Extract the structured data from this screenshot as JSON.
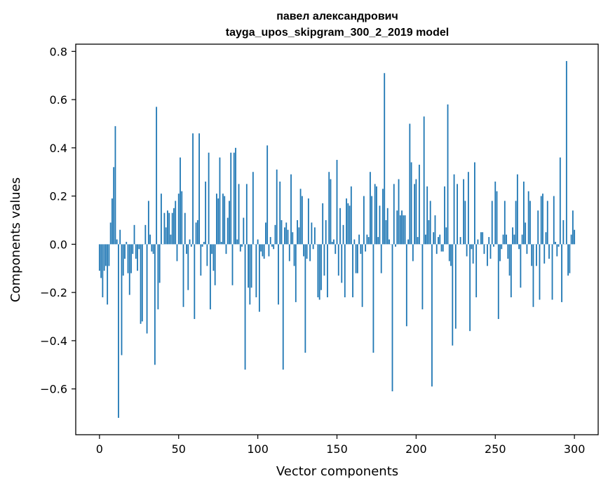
{
  "chart_data": {
    "type": "bar",
    "title_line1": "павел александрович",
    "title_line2": "tayga_upos_skipgram_300_2_2019 model",
    "xlabel": "Vector components",
    "ylabel": "Components values",
    "xlim": [
      -15,
      315
    ],
    "ylim": [
      -0.79,
      0.83
    ],
    "x_ticks": [
      0,
      50,
      100,
      150,
      200,
      250,
      300
    ],
    "y_ticks": [
      -0.6,
      -0.4,
      -0.2,
      0.0,
      0.2,
      0.4,
      0.6,
      0.8
    ],
    "x_tick_labels": [
      "0",
      "50",
      "100",
      "150",
      "200",
      "250",
      "300"
    ],
    "y_tick_labels": [
      "−0.6",
      "−0.4",
      "−0.2",
      "0.0",
      "0.2",
      "0.4",
      "0.6",
      "0.8"
    ],
    "bar_color": "#1f77b4",
    "grid": false,
    "values": [
      -0.11,
      -0.14,
      -0.22,
      -0.11,
      -0.09,
      -0.25,
      -0.09,
      0.09,
      0.19,
      0.32,
      0.49,
      0.02,
      -0.72,
      0.06,
      -0.46,
      -0.13,
      -0.06,
      0.01,
      -0.12,
      -0.21,
      -0.12,
      -0.04,
      0.08,
      -0.06,
      -0.11,
      -0.02,
      -0.33,
      -0.32,
      0.0,
      0.08,
      -0.37,
      0.18,
      0.04,
      -0.03,
      -0.04,
      -0.5,
      0.57,
      -0.27,
      -0.16,
      0.21,
      0.0,
      0.13,
      0.07,
      0.14,
      0.13,
      0.04,
      0.13,
      0.15,
      0.18,
      -0.07,
      0.21,
      0.36,
      0.22,
      -0.26,
      0.13,
      -0.04,
      -0.19,
      0.02,
      -0.01,
      0.46,
      -0.31,
      0.09,
      0.1,
      0.46,
      -0.13,
      -0.01,
      0.01,
      0.26,
      -0.09,
      0.38,
      -0.27,
      -0.04,
      -0.11,
      -0.17,
      0.21,
      0.19,
      0.36,
      0.01,
      0.21,
      0.2,
      -0.04,
      0.11,
      0.18,
      0.38,
      -0.17,
      0.38,
      0.4,
      0.02,
      0.25,
      -0.03,
      -0.01,
      0.11,
      -0.52,
      0.25,
      -0.18,
      -0.25,
      -0.18,
      0.3,
      0.0,
      -0.22,
      0.02,
      -0.28,
      -0.03,
      -0.05,
      -0.06,
      0.09,
      0.41,
      -0.05,
      0.03,
      -0.01,
      -0.02,
      0.08,
      0.31,
      -0.25,
      0.26,
      0.1,
      -0.52,
      0.07,
      0.09,
      0.06,
      -0.07,
      0.29,
      0.05,
      -0.09,
      -0.24,
      0.1,
      0.07,
      0.23,
      0.2,
      -0.05,
      -0.45,
      -0.06,
      0.19,
      -0.07,
      0.09,
      -0.02,
      0.07,
      0.0,
      -0.22,
      -0.23,
      -0.19,
      0.17,
      -0.13,
      0.1,
      -0.22,
      0.3,
      0.27,
      0.01,
      0.02,
      -0.04,
      0.35,
      -0.13,
      0.15,
      -0.16,
      0.08,
      -0.22,
      0.19,
      0.17,
      0.16,
      0.24,
      -0.22,
      0.02,
      -0.12,
      -0.12,
      0.04,
      -0.04,
      -0.26,
      0.2,
      -0.03,
      0.04,
      0.03,
      0.3,
      0.2,
      -0.45,
      0.25,
      0.24,
      0.03,
      0.16,
      -0.12,
      0.23,
      0.71,
      0.1,
      0.15,
      0.02,
      0.0,
      -0.61,
      0.25,
      -0.01,
      0.14,
      0.27,
      0.12,
      0.14,
      0.12,
      0.12,
      -0.34,
      0.02,
      0.5,
      0.34,
      -0.07,
      0.25,
      0.27,
      0.03,
      0.33,
      0.0,
      -0.27,
      0.53,
      0.04,
      0.24,
      0.1,
      0.18,
      -0.59,
      0.05,
      0.12,
      -0.04,
      0.03,
      0.04,
      -0.03,
      -0.03,
      0.24,
      0.07,
      0.58,
      -0.07,
      -0.09,
      -0.42,
      0.29,
      -0.35,
      0.25,
      0.0,
      0.03,
      0.0,
      0.27,
      0.18,
      -0.05,
      0.3,
      -0.36,
      -0.02,
      -0.08,
      0.34,
      -0.22,
      0.02,
      0.0,
      0.05,
      0.05,
      -0.04,
      0.0,
      -0.09,
      0.03,
      -0.06,
      0.18,
      -0.01,
      0.26,
      0.22,
      -0.31,
      -0.07,
      -0.02,
      0.04,
      0.18,
      0.04,
      -0.06,
      -0.13,
      -0.22,
      0.07,
      0.04,
      0.18,
      0.29,
      -0.02,
      -0.18,
      0.04,
      0.26,
      0.09,
      -0.04,
      0.22,
      0.18,
      -0.09,
      -0.26,
      0.0,
      -0.09,
      0.14,
      -0.23,
      0.2,
      0.21,
      -0.08,
      0.05,
      0.18,
      -0.06,
      0.0,
      -0.23,
      0.2,
      0.01,
      -0.05,
      -0.01,
      0.36,
      -0.24,
      0.1,
      0.0,
      0.76,
      -0.13,
      -0.12,
      0.04,
      0.14,
      0.06
    ]
  }
}
